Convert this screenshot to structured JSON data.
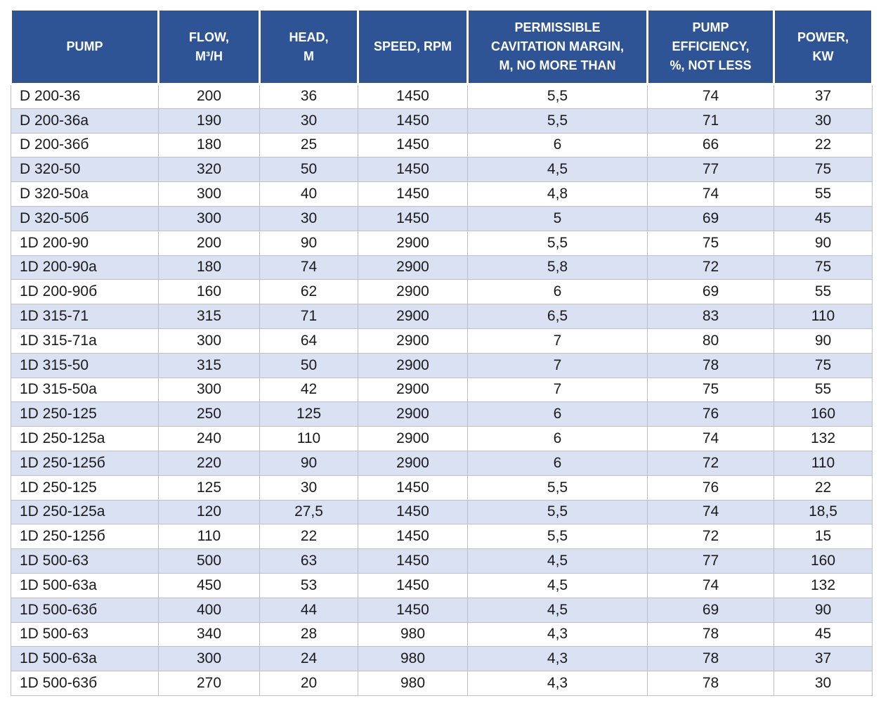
{
  "colors": {
    "header_bg": "#2F5496",
    "stripe": "#D9E1F2",
    "border": "#BFBFBF",
    "header_text": "#FFFFFF",
    "body_text": "#1A1A1A"
  },
  "table": {
    "columns": [
      "PUMP",
      "FLOW,\nM³/H",
      "HEAD,\nM",
      "SPEED, RPM",
      "PERMISSIBLE\nCAVITATION MARGIN,\nM, NO MORE THAN",
      "PUMP\nEFFICIENCY,\n%, NOT LESS",
      "POWER,\nKW"
    ],
    "column_keys": [
      "pump",
      "flow",
      "head",
      "speed",
      "cavitation-margin",
      "efficiency",
      "power"
    ],
    "rows": [
      [
        "D 200-36",
        "200",
        "36",
        "1450",
        "5,5",
        "74",
        "37"
      ],
      [
        "D 200-36a",
        "190",
        "30",
        "1450",
        "5,5",
        "71",
        "30"
      ],
      [
        "D 200-36б",
        "180",
        "25",
        "1450",
        "6",
        "66",
        "22"
      ],
      [
        "D 320-50",
        "320",
        "50",
        "1450",
        "4,5",
        "77",
        "75"
      ],
      [
        "D 320-50a",
        "300",
        "40",
        "1450",
        "4,8",
        "74",
        "55"
      ],
      [
        "D 320-50б",
        "300",
        "30",
        "1450",
        "5",
        "69",
        "45"
      ],
      [
        "1D 200-90",
        "200",
        "90",
        "2900",
        "5,5",
        "75",
        "90"
      ],
      [
        "1D 200-90a",
        "180",
        "74",
        "2900",
        "5,8",
        "72",
        "75"
      ],
      [
        "1D 200-90б",
        "160",
        "62",
        "2900",
        "6",
        "69",
        "55"
      ],
      [
        "1D 315-71",
        "315",
        "71",
        "2900",
        "6,5",
        "83",
        "110"
      ],
      [
        "1D 315-71a",
        "300",
        "64",
        "2900",
        "7",
        "80",
        "90"
      ],
      [
        "1D 315-50",
        "315",
        "50",
        "2900",
        "7",
        "78",
        "75"
      ],
      [
        "1D 315-50a",
        "300",
        "42",
        "2900",
        "7",
        "75",
        "55"
      ],
      [
        "1D 250-125",
        "250",
        "125",
        "2900",
        "6",
        "76",
        "160"
      ],
      [
        "1D 250-125a",
        "240",
        "110",
        "2900",
        "6",
        "74",
        "132"
      ],
      [
        "1D 250-125б",
        "220",
        "90",
        "2900",
        "6",
        "72",
        "110"
      ],
      [
        "1D 250-125",
        "125",
        "30",
        "1450",
        "5,5",
        "76",
        "22"
      ],
      [
        "1D 250-125a",
        "120",
        "27,5",
        "1450",
        "5,5",
        "74",
        "18,5"
      ],
      [
        "1D 250-125б",
        "110",
        "22",
        "1450",
        "5,5",
        "72",
        "15"
      ],
      [
        "1D 500-63",
        "500",
        "63",
        "1450",
        "4,5",
        "77",
        "160"
      ],
      [
        "1D 500-63a",
        "450",
        "53",
        "1450",
        "4,5",
        "74",
        "132"
      ],
      [
        "1D 500-63б",
        "400",
        "44",
        "1450",
        "4,5",
        "69",
        "90"
      ],
      [
        "1D 500-63",
        "340",
        "28",
        "980",
        "4,3",
        "78",
        "45"
      ],
      [
        "1D 500-63a",
        "300",
        "24",
        "980",
        "4,3",
        "78",
        "37"
      ],
      [
        "1D 500-63б",
        "270",
        "20",
        "980",
        "4,3",
        "78",
        "30"
      ]
    ]
  }
}
